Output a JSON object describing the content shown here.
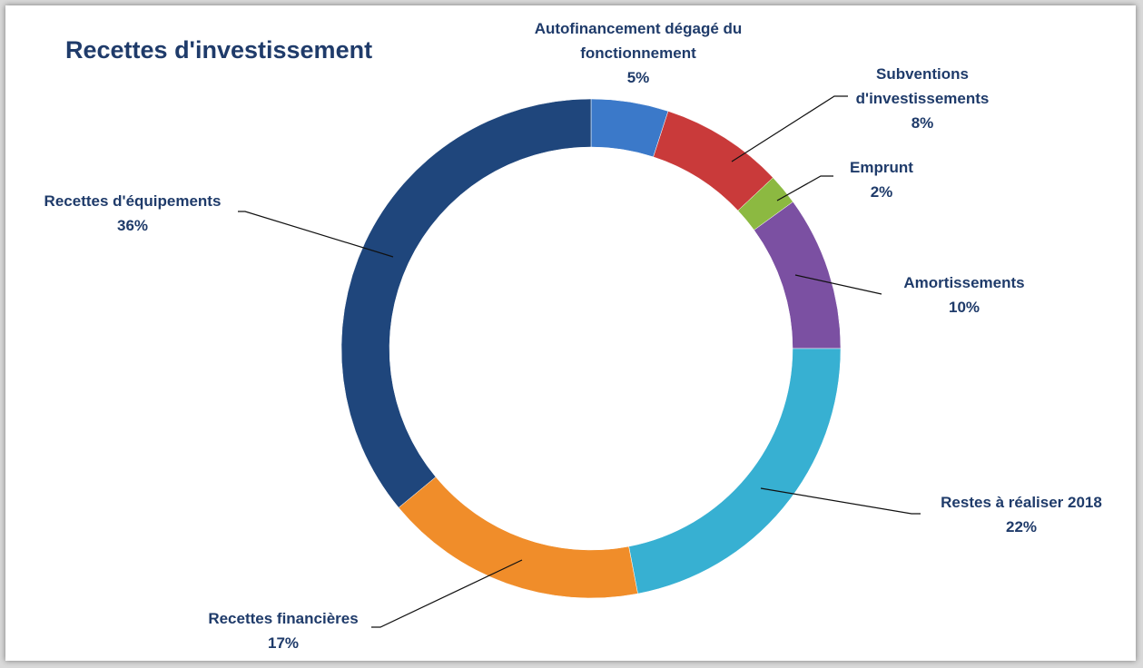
{
  "chart_data": {
    "type": "donut",
    "title": "Recettes d'investissement",
    "categories": [
      "Autofinancement dégagé du fonctionnement",
      "Subventions d'investissements",
      "Emprunt",
      "Amortissements",
      "Restes à réaliser 2018",
      "Recettes financières",
      "Recettes d'équipements"
    ],
    "values": [
      5,
      8,
      2,
      10,
      22,
      17,
      36
    ],
    "value_labels": [
      "5%",
      "8%",
      "2%",
      "10%",
      "22%",
      "17%",
      "36%"
    ],
    "colors": [
      "#3b79c9",
      "#c93a3a",
      "#8cb941",
      "#7b50a2",
      "#37b0d2",
      "#f08d2a",
      "#1f467c"
    ]
  }
}
